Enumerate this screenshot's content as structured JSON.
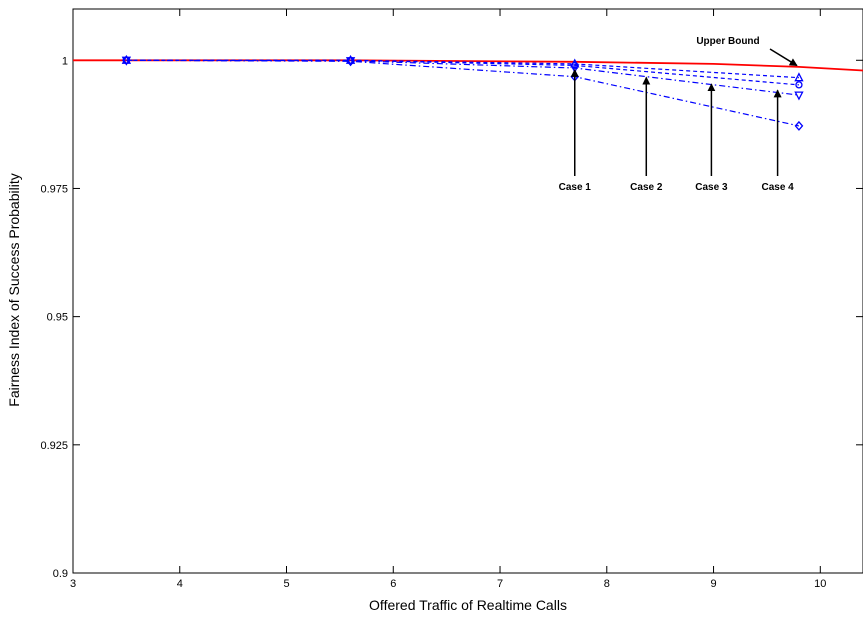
{
  "chart_data": {
    "type": "line",
    "title": "",
    "xlabel": "Offered Traffic of Realtime Calls",
    "ylabel": "Fairness Index of Success Probability",
    "xlim": [
      3,
      10.4
    ],
    "ylim": [
      0.9,
      1.01
    ],
    "xticks": [
      "3",
      "4",
      "5",
      "6",
      "7",
      "8",
      "9",
      "10"
    ],
    "yticks": [
      "0.9",
      "0.925",
      "0.95",
      "0.975",
      "1"
    ],
    "grid": false,
    "legend": "none",
    "series": [
      {
        "name": "Upper Bound",
        "color": "#ff0000",
        "style": "solid",
        "marker": "none",
        "x": [
          3.0,
          3.5,
          5.6,
          7.7,
          9.0,
          9.8,
          10.4
        ],
        "y": [
          1.0,
          1.0,
          1.0,
          0.9997,
          0.9993,
          0.9987,
          0.998
        ]
      },
      {
        "name": "Case 1",
        "color": "#0000ff",
        "style": "dashed",
        "marker": "triangle-up",
        "x": [
          3.5,
          5.6,
          7.7,
          9.8
        ],
        "y": [
          1.0,
          1.0,
          0.9993,
          0.9966
        ]
      },
      {
        "name": "Case 2",
        "color": "#0000ff",
        "style": "dashed",
        "marker": "circle",
        "x": [
          3.5,
          5.6,
          7.7,
          9.8
        ],
        "y": [
          1.0,
          1.0,
          0.999,
          0.9952
        ]
      },
      {
        "name": "Case 3",
        "color": "#0000ff",
        "style": "dashdot",
        "marker": "triangle-down",
        "x": [
          3.5,
          5.6,
          7.7,
          9.8
        ],
        "y": [
          1.0,
          0.9999,
          0.9985,
          0.9932
        ]
      },
      {
        "name": "Case 4",
        "color": "#0000ff",
        "style": "dashdot",
        "marker": "diamond",
        "x": [
          3.5,
          5.6,
          7.7,
          9.8
        ],
        "y": [
          1.0,
          0.9998,
          0.9968,
          0.9872
        ]
      }
    ],
    "annotations": [
      {
        "text": "Upper Bound",
        "arrow_to": [
          9.78,
          0.9986
        ]
      },
      {
        "text": "Case 1",
        "arrow_to": [
          7.7,
          0.9993
        ]
      },
      {
        "text": "Case 2",
        "arrow_to": [
          8.37,
          0.9978
        ]
      },
      {
        "text": "Case 3",
        "arrow_to": [
          8.98,
          0.9965
        ]
      },
      {
        "text": "Case 4",
        "arrow_to": [
          9.6,
          0.9953
        ]
      }
    ]
  }
}
